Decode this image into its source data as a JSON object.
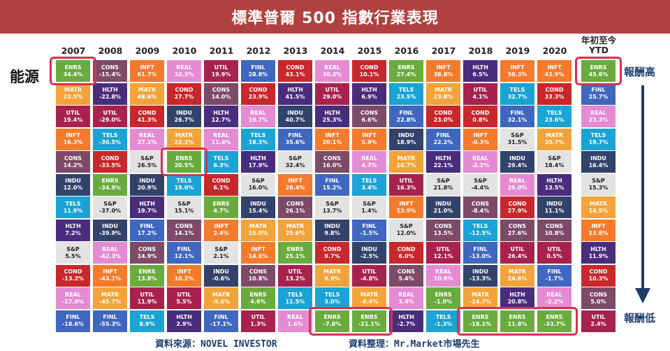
{
  "title": "標準普爾 500 指數行業表現",
  "row_label": "能源",
  "high_label": "報酬高",
  "low_label": "報酬低",
  "source_text": "資料來源：NOVEL INVESTOR",
  "compiled_text": "資料整理：Mr.Market市場先生",
  "colors": {
    "ENRS": "#6aab3e",
    "CONS": "#7d4a69",
    "INFT": "#f47a2c",
    "REAL": "#e58bd4",
    "UTIL": "#a8224d",
    "FINL": "#3f67bf",
    "COND": "#c8272b",
    "TELS": "#1aa3d4",
    "HLTH": "#4a2c7d",
    "MATR": "#f2a33a",
    "INDU": "#33426b",
    "S&P": "#e3e3e3",
    "banner": "#b14140",
    "highlight": "#d93150",
    "accent": "#1f3e6e"
  },
  "chart_data": {
    "type": "table",
    "columns": [
      "2007",
      "2008",
      "2009",
      "2010",
      "2011",
      "2012",
      "2013",
      "2014",
      "2015",
      "2016",
      "2017",
      "2018",
      "2019",
      "2020",
      "年初至今\nYTD"
    ],
    "grid": [
      [
        [
          "ENRS",
          "34.4%"
        ],
        [
          "CONS",
          "-15.4%"
        ],
        [
          "INFT",
          "61.7%"
        ],
        [
          "REAL",
          "32.3%"
        ],
        [
          "UTIL",
          "19.9%"
        ],
        [
          "FINL",
          "28.8%"
        ],
        [
          "COND",
          "43.1%"
        ],
        [
          "REAL",
          "30.2%"
        ],
        [
          "COND",
          "10.1%"
        ],
        [
          "ENRS",
          "27.4%"
        ],
        [
          "INFT",
          "38.8%"
        ],
        [
          "HLTH",
          "6.5%"
        ],
        [
          "INFT",
          "50.3%"
        ],
        [
          "INFT",
          "43.9%"
        ],
        [
          "ENRS",
          "45.6%"
        ]
      ],
      [
        [
          "MATR",
          "22.5%"
        ],
        [
          "HLTH",
          "-22.8%"
        ],
        [
          "MATR",
          "48.6%"
        ],
        [
          "COND",
          "27.7%"
        ],
        [
          "CONS",
          "14.0%"
        ],
        [
          "COND",
          "23.9%"
        ],
        [
          "HLTH",
          "41.5%"
        ],
        [
          "UTIL",
          "29.0%"
        ],
        [
          "HLTH",
          "6.9%"
        ],
        [
          "TELS",
          "23.5%"
        ],
        [
          "MATR",
          "23.8%"
        ],
        [
          "UTIL",
          "4.1%"
        ],
        [
          "TELS",
          "32.7%"
        ],
        [
          "COND",
          "33.3%"
        ],
        [
          "FINL",
          "25.7%"
        ]
      ],
      [
        [
          "UTIL",
          "19.4%"
        ],
        [
          "UTIL",
          "-29.0%"
        ],
        [
          "COND",
          "41.3%"
        ],
        [
          "INDU",
          "26.7%"
        ],
        [
          "HLTH",
          "12.7%"
        ],
        [
          "REAL",
          "19.7%"
        ],
        [
          "INDU",
          "40.7%"
        ],
        [
          "HLTH",
          "25.3%"
        ],
        [
          "CONS",
          "6.6%"
        ],
        [
          "FINL",
          "22.8%"
        ],
        [
          "COND",
          "23.0%"
        ],
        [
          "COND",
          "0.8%"
        ],
        [
          "FINL",
          "32.1%"
        ],
        [
          "TELS",
          "23.6%"
        ],
        [
          "REAL",
          "23.3%"
        ]
      ],
      [
        [
          "INFT",
          "16.3%"
        ],
        [
          "TELS",
          "-30.5%"
        ],
        [
          "REAL",
          "27.1%"
        ],
        [
          "MATR",
          "22.2%"
        ],
        [
          "REAL",
          "11.4%"
        ],
        [
          "TELS",
          "18.3%"
        ],
        [
          "FINL",
          "35.6%"
        ],
        [
          "INFT",
          "20.1%"
        ],
        [
          "INFT",
          "5.9%"
        ],
        [
          "INDU",
          "18.9%"
        ],
        [
          "FINL",
          "22.2%"
        ],
        [
          "INFT",
          "-0.3%"
        ],
        [
          "S&P",
          "31.5%"
        ],
        [
          "MATR",
          "20.7%"
        ],
        [
          "TELS",
          "19.7%"
        ]
      ],
      [
        [
          "CONS",
          "14.2%"
        ],
        [
          "COND",
          "-33.5%"
        ],
        [
          "S&P",
          "26.5%"
        ],
        [
          "ENRS",
          "20.5%"
        ],
        [
          "TELS",
          "6.3%"
        ],
        [
          "HLTH",
          "17.9%"
        ],
        [
          "S&P",
          "32.4%"
        ],
        [
          "CONS",
          "16.0%"
        ],
        [
          "REAL",
          "4.7%"
        ],
        [
          "MATR",
          "16.7%"
        ],
        [
          "HLTH",
          "22.1%"
        ],
        [
          "REAL",
          "-2.2%"
        ],
        [
          "INDU",
          "29.4%"
        ],
        [
          "S&P",
          "18.4%"
        ],
        [
          "INDU",
          "16.4%"
        ]
      ],
      [
        [
          "INDU",
          "12.0%"
        ],
        [
          "ENRS",
          "-34.9%"
        ],
        [
          "INDU",
          "20.9%"
        ],
        [
          "TELS",
          "19.0%"
        ],
        [
          "COND",
          "6.1%"
        ],
        [
          "S&P",
          "16.0%"
        ],
        [
          "INFT",
          "28.4%"
        ],
        [
          "FINL",
          "15.2%"
        ],
        [
          "TELS",
          "3.4%"
        ],
        [
          "UTIL",
          "16.3%"
        ],
        [
          "S&P",
          "21.8%"
        ],
        [
          "S&P",
          "-4.4%"
        ],
        [
          "REAL",
          "29.0%"
        ],
        [
          "HLTH",
          "13.5%"
        ],
        [
          "S&P",
          "15.3%"
        ]
      ],
      [
        [
          "TELS",
          "11.9%"
        ],
        [
          "S&P",
          "-37.0%"
        ],
        [
          "HLTH",
          "19.7%"
        ],
        [
          "S&P",
          "15.1%"
        ],
        [
          "ENRS",
          "4.7%"
        ],
        [
          "INDU",
          "15.4%"
        ],
        [
          "CONS",
          "26.1%"
        ],
        [
          "S&P",
          "13.7%"
        ],
        [
          "S&P",
          "1.4%"
        ],
        [
          "INFT",
          "13.9%"
        ],
        [
          "INDU",
          "21.0%"
        ],
        [
          "CONS",
          "-8.4%"
        ],
        [
          "COND",
          "27.9%"
        ],
        [
          "INDU",
          "11.1%"
        ],
        [
          "MATR",
          "14.5%"
        ]
      ],
      [
        [
          "HLTH",
          "7.2%"
        ],
        [
          "INDU",
          "-39.9%"
        ],
        [
          "FINL",
          "17.2%"
        ],
        [
          "CONS",
          "14.1%"
        ],
        [
          "INFT",
          "2.4%"
        ],
        [
          "MATR",
          "15.0%"
        ],
        [
          "MATR",
          "25.6%"
        ],
        [
          "INDU",
          "9.8%"
        ],
        [
          "FINL",
          "-1.5%"
        ],
        [
          "S&P",
          "12.0%"
        ],
        [
          "CONS",
          "13.5%"
        ],
        [
          "TELS",
          "-12.5%"
        ],
        [
          "CONS",
          "27.6%"
        ],
        [
          "CONS",
          "10.8%"
        ],
        [
          "INFT",
          "13.8%"
        ]
      ],
      [
        [
          "S&P",
          "5.5%"
        ],
        [
          "REAL",
          "-42.3%"
        ],
        [
          "CONS",
          "14.9%"
        ],
        [
          "FINL",
          "12.1%"
        ],
        [
          "S&P",
          "2.1%"
        ],
        [
          "INFT",
          "14.8%"
        ],
        [
          "ENRS",
          "25.1%"
        ],
        [
          "COND",
          "9.7%"
        ],
        [
          "INDU",
          "-2.5%"
        ],
        [
          "COND",
          "6.0%"
        ],
        [
          "UTIL",
          "12.1%"
        ],
        [
          "FINL",
          "-13.0%"
        ],
        [
          "UTIL",
          "26.4%"
        ],
        [
          "UTIL",
          "0.5%"
        ],
        [
          "HLTH",
          "11.9%"
        ]
      ],
      [
        [
          "COND",
          "-13.2%"
        ],
        [
          "INFT",
          "-43.1%"
        ],
        [
          "ENRS",
          "13.8%"
        ],
        [
          "INFT",
          "10.2%"
        ],
        [
          "INDU",
          "-0.6%"
        ],
        [
          "CONS",
          "10.8%"
        ],
        [
          "UTIL",
          "13.2%"
        ],
        [
          "MATR",
          "6.9%"
        ],
        [
          "UTIL",
          "-4.8%"
        ],
        [
          "CONS",
          "5.4%"
        ],
        [
          "REAL",
          "10.9%"
        ],
        [
          "INDU",
          "-13.3%"
        ],
        [
          "MATR",
          "24.6%"
        ],
        [
          "FINL",
          "-1.7%"
        ],
        [
          "COND",
          "10.3%"
        ]
      ],
      [
        [
          "REAL",
          "-17.9%"
        ],
        [
          "MATR",
          "-45.7%"
        ],
        [
          "UTIL",
          "11.9%"
        ],
        [
          "UTIL",
          "5.5%"
        ],
        [
          "MATR",
          "-9.6%"
        ],
        [
          "ENRS",
          "4.6%"
        ],
        [
          "TELS",
          "11.5%"
        ],
        [
          "TELS",
          "3.0%"
        ],
        [
          "MATR",
          "-8.4%"
        ],
        [
          "REAL",
          "3.4%"
        ],
        [
          "ENRS",
          "-1.0%"
        ],
        [
          "MATR",
          "-14.7%"
        ],
        [
          "HLTH",
          "20.8%"
        ],
        [
          "REAL",
          "-2.2%"
        ],
        [
          "CONS",
          "5.0%"
        ]
      ],
      [
        [
          "FINL",
          "-18.6%"
        ],
        [
          "FINL",
          "-55.3%"
        ],
        [
          "TELS",
          "8.9%"
        ],
        [
          "HLTH",
          "2.9%"
        ],
        [
          "FINL",
          "-17.1%"
        ],
        [
          "UTIL",
          "1.3%"
        ],
        [
          "REAL",
          "1.6%"
        ],
        [
          "ENRS",
          "-7.8%"
        ],
        [
          "ENRS",
          "-21.1%"
        ],
        [
          "HLTH",
          "-2.7%"
        ],
        [
          "TELS",
          "-1.3%"
        ],
        [
          "ENRS",
          "-18.1%"
        ],
        [
          "ENRS",
          "11.8%"
        ],
        [
          "ENRS",
          "-33.7%"
        ],
        [
          "UTIL",
          "2.4%"
        ]
      ]
    ]
  }
}
